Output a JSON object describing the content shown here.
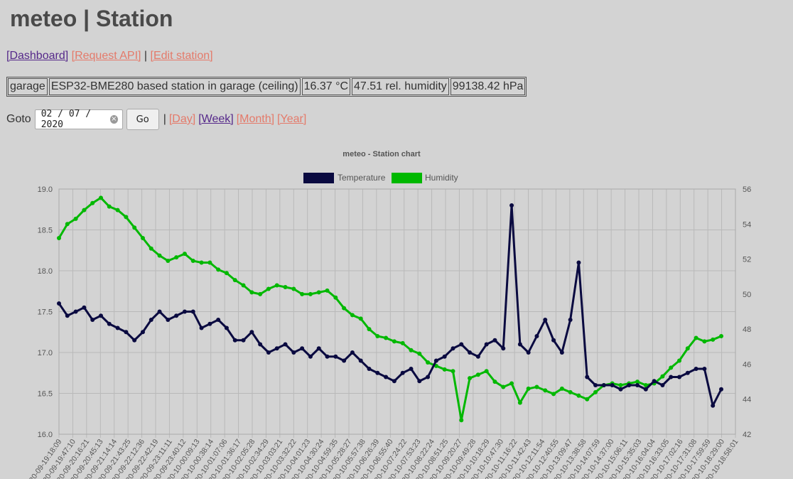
{
  "header": {
    "title": "meteo | Station"
  },
  "nav": {
    "dashboard": "[Dashboard]",
    "request_api": "[Request API]",
    "sep": "|",
    "edit_station": "[Edit station]"
  },
  "station": {
    "name": "garage",
    "description": "ESP32-BME280 based station in garage (ceiling)",
    "temperature": "16.37 °C",
    "humidity": "47.51 rel. humidity",
    "pressure": "99138.42 hPa"
  },
  "goto": {
    "label": "Goto",
    "date_value": "02 / 07 / 2020",
    "go_label": "Go",
    "sep": "|",
    "day": "[Day]",
    "week": "[Week]",
    "month": "[Month]",
    "year": "[Year]"
  },
  "colors": {
    "temperature": "#0a0a40",
    "humidity": "#00b800",
    "visited_link": "#55288a",
    "link": "#e47a6a"
  },
  "chart_data": {
    "type": "line",
    "title": "meteo - Station chart",
    "legend": [
      "Temperature",
      "Humidity"
    ],
    "legend_position": "top",
    "grid": true,
    "y_left": {
      "ticks": [
        "19.0",
        "18.5",
        "18.0",
        "17.5",
        "17.0",
        "16.5",
        "16.0"
      ],
      "range": [
        16.0,
        19.0
      ]
    },
    "y_right": {
      "ticks": [
        "56",
        "54",
        "52",
        "50",
        "48",
        "46",
        "44",
        "42"
      ],
      "range": [
        42,
        56
      ]
    },
    "x_tick_labels": [
      "2020-09-19:18:09",
      "2020-09-19:47:10",
      "2020-09-20:16:21",
      "2020-09-20:45:13",
      "2020-09-21:14:14",
      "2020-09-21:43:25",
      "2020-09-22:12:36",
      "2020-09-22:42:19",
      "2020-09-23:11:11",
      "2020-09-23:40:12",
      "2020-10-00:09:13",
      "2020-10-00:38:14",
      "2020-10-01:07:06",
      "2020-10-01:36:17",
      "2020-10-02:05:28",
      "2020-10-02:34:29",
      "2020-10-03:03:21",
      "2020-10-03:32:22",
      "2020-10-04:01:23",
      "2020-10-04:30:24",
      "2020-10-04:59:35",
      "2020-10-05:28:27",
      "2020-10-05:57:38",
      "2020-10-06:26:39",
      "2020-10-06:55:40",
      "2020-10-07:24:22",
      "2020-10-07:53:23",
      "2020-10-08:22:24",
      "2020-10-08:51:25",
      "2020-10-09:20:27",
      "2020-10-09:49:28",
      "2020-10-10:18:29",
      "2020-10-10:47:30",
      "2020-10-11:16:22",
      "2020-10-11:42:43",
      "2020-10-12:11:54",
      "2020-10-12:40:55",
      "2020-10-13:09:47",
      "2020-10-13:38:58",
      "2020-10-14:07:59",
      "2020-10-14:37:00",
      "2020-10-15:06:11",
      "2020-10-15:35:03",
      "2020-10-16:04:04",
      "2020-10-16:33:05",
      "2020-10-17:02:16",
      "2020-10-17:31:08",
      "2020-10-17:59:59",
      "2020-10-18:29:00",
      "2020-10-18:58:01"
    ],
    "series": [
      {
        "name": "Temperature",
        "axis": "left",
        "values": [
          17.6,
          17.45,
          17.5,
          17.55,
          17.4,
          17.45,
          17.35,
          17.3,
          17.25,
          17.15,
          17.25,
          17.4,
          17.5,
          17.4,
          17.45,
          17.5,
          17.5,
          17.3,
          17.35,
          17.4,
          17.3,
          17.15,
          17.15,
          17.25,
          17.1,
          17.0,
          17.05,
          17.1,
          17.0,
          17.05,
          16.95,
          17.05,
          16.95,
          16.95,
          16.9,
          17.0,
          16.9,
          16.8,
          16.75,
          16.7,
          16.65,
          16.75,
          16.8,
          16.65,
          16.7,
          16.9,
          16.95,
          17.05,
          17.1,
          17.0,
          16.95,
          17.1,
          17.15,
          17.05,
          18.8,
          17.1,
          17.0,
          17.2,
          17.4,
          17.15,
          17.0,
          17.4,
          18.1,
          16.7,
          16.6,
          16.6,
          16.6,
          16.55,
          16.6,
          16.6,
          16.55,
          16.65,
          16.6,
          16.7,
          16.7,
          16.75,
          16.8,
          16.8,
          16.35,
          16.55
        ]
      },
      {
        "name": "Humidity",
        "axis": "right",
        "values": [
          53.2,
          54.0,
          54.3,
          54.8,
          55.2,
          55.5,
          55.0,
          54.8,
          54.4,
          53.8,
          53.2,
          52.6,
          52.2,
          51.9,
          52.1,
          52.3,
          51.9,
          51.8,
          51.8,
          51.4,
          51.2,
          50.8,
          50.5,
          50.1,
          50.0,
          50.3,
          50.5,
          50.4,
          50.3,
          50.0,
          50.0,
          50.1,
          50.2,
          49.8,
          49.2,
          48.8,
          48.6,
          48.0,
          47.6,
          47.5,
          47.3,
          47.2,
          46.8,
          46.6,
          46.1,
          45.9,
          45.7,
          45.6,
          42.8,
          45.2,
          45.4,
          45.6,
          45.0,
          44.7,
          44.9,
          43.8,
          44.6,
          44.7,
          44.5,
          44.3,
          44.6,
          44.4,
          44.2,
          44.0,
          44.4,
          44.8,
          44.9,
          44.8,
          44.9,
          45.0,
          44.8,
          44.9,
          45.3,
          45.8,
          46.2,
          46.9,
          47.5,
          47.3,
          47.4,
          47.6
        ]
      }
    ]
  }
}
